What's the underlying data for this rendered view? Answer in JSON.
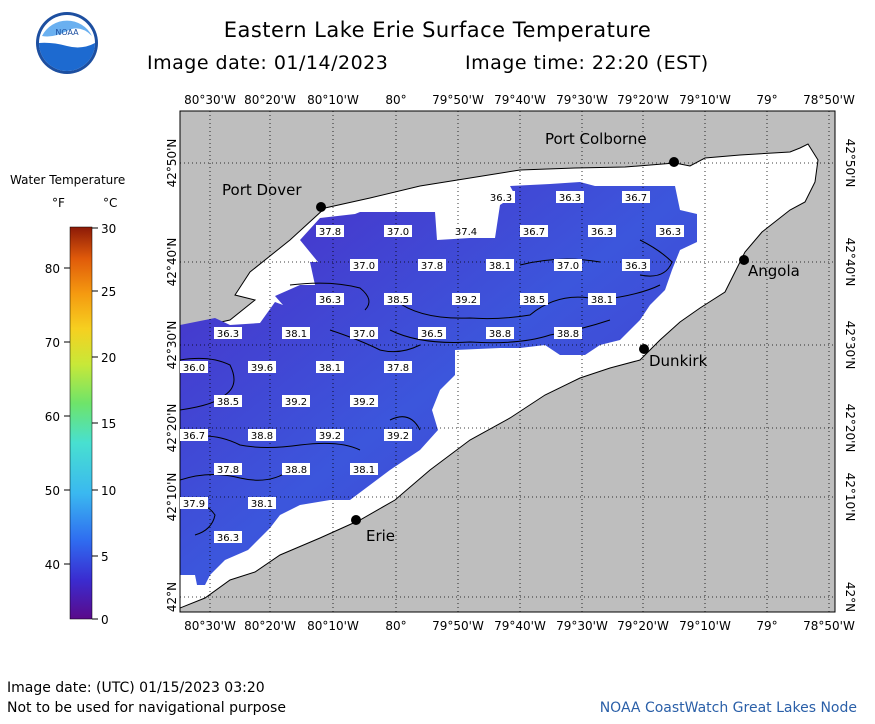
{
  "title": "Eastern Lake Erie Surface Temperature",
  "image_date_label": "Image date: 01/14/2023",
  "image_time_label": "Image time: 22:20 (EST)",
  "logo_text": "NOAA",
  "legend": {
    "title": "Water Temperature",
    "unit_f": "°F",
    "unit_c": "°C",
    "f_ticks": [
      "80",
      "70",
      "60",
      "50",
      "40"
    ],
    "c_ticks": [
      "30",
      "25",
      "20",
      "15",
      "10",
      "5",
      "0"
    ]
  },
  "axes": {
    "lon_labels": [
      "80°30'W",
      "80°20'W",
      "80°10'W",
      "80°",
      "79°50'W",
      "79°40'W",
      "79°30'W",
      "79°20'W",
      "79°10'W",
      "79°",
      "78°50'W"
    ],
    "lat_labels": [
      "42°50'N",
      "42°40'N",
      "42°30'N",
      "42°20'N",
      "42°10'N",
      "42°N"
    ]
  },
  "cities": [
    {
      "name": "Port Colborne"
    },
    {
      "name": "Port Dover"
    },
    {
      "name": "Angola"
    },
    {
      "name": "Dunkirk"
    },
    {
      "name": "Erie"
    }
  ],
  "temperature_labels": [
    "36.3",
    "36.3",
    "36.7",
    "37.8",
    "37.0",
    "37.4",
    "36.7",
    "36.3",
    "36.3",
    "37.0",
    "37.8",
    "38.1",
    "37.0",
    "36.3",
    "36.3",
    "38.5",
    "39.2",
    "38.5",
    "38.1",
    "36.3",
    "38.1",
    "37.0",
    "36.5",
    "38.8",
    "38.8",
    "36.0",
    "39.6",
    "38.1",
    "37.8",
    "38.5",
    "39.2",
    "39.2",
    "36.7",
    "38.8",
    "39.2",
    "39.2",
    "37.8",
    "38.8",
    "38.1",
    "37.9",
    "38.1",
    "36.3"
  ],
  "footer": {
    "utc_date": "Image date: (UTC) 01/15/2023  03:20",
    "disclaimer": "Not to be used for navigational purpose",
    "credit": "NOAA CoastWatch Great Lakes Node"
  },
  "colors": {
    "land": "#bebebe",
    "lake_no_data": "#ffffff",
    "water_cold": "#4a2cc6",
    "water_warm": "#3a58d8"
  }
}
